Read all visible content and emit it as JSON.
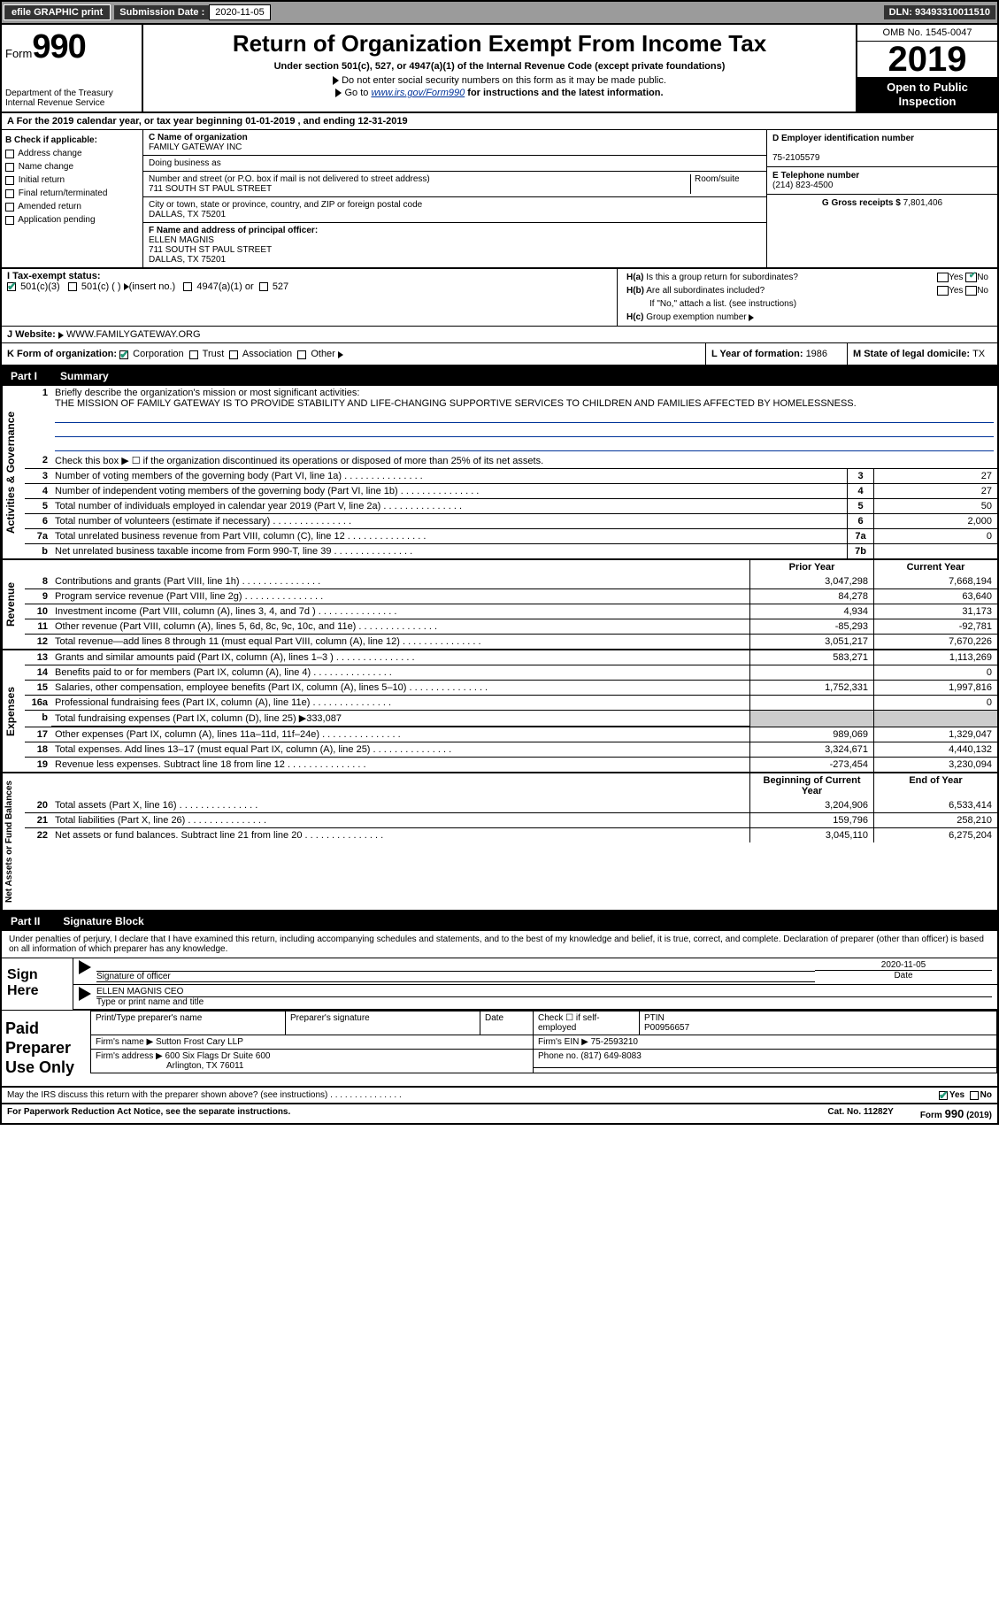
{
  "topbar": {
    "efile": "efile GRAPHIC print",
    "sub_label": "Submission Date : ",
    "sub_date": "2020-11-05",
    "dln": "DLN: 93493310011510"
  },
  "header": {
    "form_word": "Form",
    "form_num": "990",
    "dept": "Department of the Treasury\nInternal Revenue Service",
    "title": "Return of Organization Exempt From Income Tax",
    "sub": "Under section 501(c), 527, or 4947(a)(1) of the Internal Revenue Code (except private foundations)",
    "line1": "Do not enter social security numbers on this form as it may be made public.",
    "line2_pre": "Go to ",
    "line2_link": "www.irs.gov/Form990",
    "line2_post": " for instructions and the latest information.",
    "omb": "OMB No. 1545-0047",
    "year": "2019",
    "open_pub": "Open to Public\nInspection"
  },
  "lineA": "A For the 2019 calendar year, or tax year beginning 01-01-2019    , and ending 12-31-2019",
  "colB": {
    "title": "B Check if applicable:",
    "opts": [
      "Address change",
      "Name change",
      "Initial return",
      "Final return/terminated",
      "Amended return",
      "Application pending"
    ]
  },
  "colC": {
    "name_lbl": "C Name of organization",
    "name": "FAMILY GATEWAY INC",
    "dba_lbl": "Doing business as",
    "dba": "",
    "street_lbl": "Number and street (or P.O. box if mail is not delivered to street address)",
    "street": "711 SOUTH ST PAUL STREET",
    "room_lbl": "Room/suite",
    "city_lbl": "City or town, state or province, country, and ZIP or foreign postal code",
    "city": "DALLAS, TX  75201",
    "F_lbl": "F  Name and address of principal officer:",
    "F_name": "ELLEN MAGNIS",
    "F_addr1": "711 SOUTH ST PAUL STREET",
    "F_addr2": "DALLAS, TX  75201"
  },
  "colD": {
    "D_lbl": "D Employer identification number",
    "D_val": "75-2105579",
    "E_lbl": "E Telephone number",
    "E_val": "(214) 823-4500",
    "G_lbl": "G Gross receipts $ ",
    "G_val": "7,801,406"
  },
  "H": {
    "a": "H(a)  Is this a group return for subordinates?",
    "b": "H(b)  Are all subordinates included?",
    "b2": "If \"No,\" attach a list. (see instructions)",
    "c": "H(c)  Group exemption number"
  },
  "I": {
    "lbl": "I   Tax-exempt status:",
    "o1": "501(c)(3)",
    "o2": "501(c) (  )",
    "o2b": "(insert no.)",
    "o3": "4947(a)(1) or",
    "o4": "527"
  },
  "J": {
    "lbl": "J   Website:",
    "val": "WWW.FAMILYGATEWAY.ORG"
  },
  "K": {
    "lbl": "K Form of organization:",
    "o1": "Corporation",
    "o2": "Trust",
    "o3": "Association",
    "o4": "Other"
  },
  "L": {
    "lbl": "L Year of formation: ",
    "val": "1986"
  },
  "M": {
    "lbl": "M State of legal domicile: ",
    "val": "TX"
  },
  "part1": {
    "hdr": "Part I",
    "ttl": "Summary"
  },
  "mission": {
    "lbl": "Briefly describe the organization's mission or most significant activities:",
    "txt": "THE MISSION OF FAMILY GATEWAY IS TO PROVIDE STABILITY AND LIFE-CHANGING SUPPORTIVE SERVICES TO CHILDREN AND FAMILIES AFFECTED BY HOMELESSNESS."
  },
  "gov_rows": [
    {
      "n": "2",
      "t": "Check this box ▶ ☐  if the organization discontinued its operations or disposed of more than 25% of its net assets."
    },
    {
      "n": "3",
      "t": "Number of voting members of the governing body (Part VI, line 1a)",
      "box": "3",
      "v": "27"
    },
    {
      "n": "4",
      "t": "Number of independent voting members of the governing body (Part VI, line 1b)",
      "box": "4",
      "v": "27"
    },
    {
      "n": "5",
      "t": "Total number of individuals employed in calendar year 2019 (Part V, line 2a)",
      "box": "5",
      "v": "50"
    },
    {
      "n": "6",
      "t": "Total number of volunteers (estimate if necessary)",
      "box": "6",
      "v": "2,000"
    },
    {
      "n": "7a",
      "t": "Total unrelated business revenue from Part VIII, column (C), line 12",
      "box": "7a",
      "v": "0"
    },
    {
      "n": "b",
      "t": "Net unrelated business taxable income from Form 990-T, line 39",
      "box": "7b",
      "v": ""
    }
  ],
  "col_hdr1": "Prior Year",
  "col_hdr2": "Current Year",
  "rev_rows": [
    {
      "n": "8",
      "t": "Contributions and grants (Part VIII, line 1h)",
      "c1": "3,047,298",
      "c2": "7,668,194"
    },
    {
      "n": "9",
      "t": "Program service revenue (Part VIII, line 2g)",
      "c1": "84,278",
      "c2": "63,640"
    },
    {
      "n": "10",
      "t": "Investment income (Part VIII, column (A), lines 3, 4, and 7d )",
      "c1": "4,934",
      "c2": "31,173"
    },
    {
      "n": "11",
      "t": "Other revenue (Part VIII, column (A), lines 5, 6d, 8c, 9c, 10c, and 11e)",
      "c1": "-85,293",
      "c2": "-92,781"
    },
    {
      "n": "12",
      "t": "Total revenue—add lines 8 through 11 (must equal Part VIII, column (A), line 12)",
      "c1": "3,051,217",
      "c2": "7,670,226"
    }
  ],
  "exp_rows": [
    {
      "n": "13",
      "t": "Grants and similar amounts paid (Part IX, column (A), lines 1–3 )",
      "c1": "583,271",
      "c2": "1,113,269"
    },
    {
      "n": "14",
      "t": "Benefits paid to or for members (Part IX, column (A), line 4)",
      "c1": "",
      "c2": "0"
    },
    {
      "n": "15",
      "t": "Salaries, other compensation, employee benefits (Part IX, column (A), lines 5–10)",
      "c1": "1,752,331",
      "c2": "1,997,816"
    },
    {
      "n": "16a",
      "t": "Professional fundraising fees (Part IX, column (A), line 11e)",
      "c1": "",
      "c2": "0"
    },
    {
      "n": "b",
      "t": "Total fundraising expenses (Part IX, column (D), line 25) ▶333,087",
      "shaded": true
    },
    {
      "n": "17",
      "t": "Other expenses (Part IX, column (A), lines 11a–11d, 11f–24e)",
      "c1": "989,069",
      "c2": "1,329,047"
    },
    {
      "n": "18",
      "t": "Total expenses. Add lines 13–17 (must equal Part IX, column (A), line 25)",
      "c1": "3,324,671",
      "c2": "4,440,132"
    },
    {
      "n": "19",
      "t": "Revenue less expenses. Subtract line 18 from line 12",
      "c1": "-273,454",
      "c2": "3,230,094"
    }
  ],
  "na_hdr1": "Beginning of Current Year",
  "na_hdr2": "End of Year",
  "na_rows": [
    {
      "n": "20",
      "t": "Total assets (Part X, line 16)",
      "c1": "3,204,906",
      "c2": "6,533,414"
    },
    {
      "n": "21",
      "t": "Total liabilities (Part X, line 26)",
      "c1": "159,796",
      "c2": "258,210"
    },
    {
      "n": "22",
      "t": "Net assets or fund balances. Subtract line 21 from line 20",
      "c1": "3,045,110",
      "c2": "6,275,204"
    }
  ],
  "part2": {
    "hdr": "Part II",
    "ttl": "Signature Block"
  },
  "sig": {
    "text": "Under penalties of perjury, I declare that I have examined this return, including accompanying schedules and statements, and to the best of my knowledge and belief, it is true, correct, and complete. Declaration of preparer (other than officer) is based on all information of which preparer has any knowledge.",
    "sign_here": "Sign Here",
    "sig_officer": "Signature of officer",
    "sig_date_lbl": "Date",
    "sig_date": "2020-11-05",
    "sig_name": "ELLEN MAGNIS CEO",
    "sig_type": "Type or print name and title"
  },
  "prep": {
    "title": "Paid Preparer Use Only",
    "r1a": "Print/Type preparer's name",
    "r1b": "Preparer's signature",
    "r1c": "Date",
    "r1d": "Check ☐ if self-employed",
    "r1e_lbl": "PTIN",
    "r1e": "P00956657",
    "r2a": "Firm's name   ▶",
    "r2b": "Sutton Frost Cary LLP",
    "r2c_lbl": "Firm's EIN ▶",
    "r2c": "75-2593210",
    "r3a": "Firm's address ▶",
    "r3b": "600 Six Flags Dr Suite 600",
    "r3c_lbl": "Phone no.",
    "r3c": "(817) 649-8083",
    "r3b2": "Arlington, TX  76011"
  },
  "discuss": "May the IRS discuss this return with the preparer shown above? (see instructions)",
  "footer": {
    "l": "For Paperwork Reduction Act Notice, see the separate instructions.",
    "m": "Cat. No. 11282Y",
    "r": "Form 990 (2019)"
  }
}
